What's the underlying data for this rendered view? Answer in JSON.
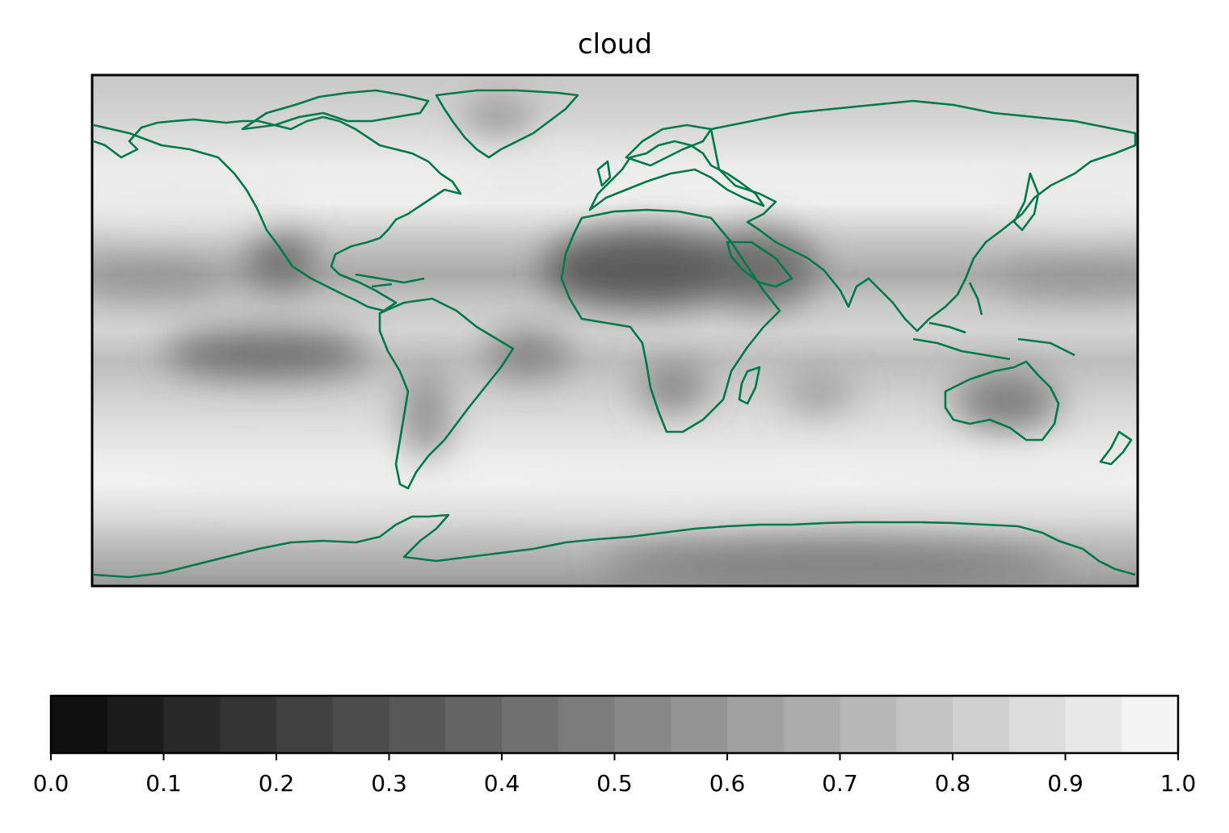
{
  "chart_data": {
    "type": "heatmap",
    "title": "cloud",
    "variable": "cloud",
    "projection": "PlateCarree",
    "lon_range": [
      -180,
      180
    ],
    "lat_range": [
      -90,
      90
    ],
    "colormap": "gray",
    "coastline_color": "#007a4a",
    "colorbar": {
      "orientation": "horizontal",
      "placement": "bottom",
      "range": [
        0.0,
        1.0
      ],
      "levels": [
        0.0,
        0.05,
        0.1,
        0.15,
        0.2,
        0.25,
        0.3,
        0.35,
        0.4,
        0.45,
        0.5,
        0.55,
        0.6,
        0.65,
        0.7,
        0.75,
        0.8,
        0.85,
        0.9,
        0.95,
        1.0
      ],
      "ticks": [
        0.0,
        0.1,
        0.2,
        0.3,
        0.4,
        0.5,
        0.6,
        0.7,
        0.8,
        0.9,
        1.0
      ],
      "tick_labels": [
        "0.0",
        "0.1",
        "0.2",
        "0.3",
        "0.4",
        "0.5",
        "0.6",
        "0.7",
        "0.8",
        "0.9",
        "1.0"
      ]
    },
    "field_blobs": [
      {
        "lon": 10,
        "lat": 22,
        "rx": 35,
        "ry": 14,
        "value": 0.28
      },
      {
        "lon": 50,
        "lat": 22,
        "rx": 20,
        "ry": 14,
        "value": 0.38
      },
      {
        "lon": -115,
        "lat": 25,
        "rx": 12,
        "ry": 10,
        "value": 0.38
      },
      {
        "lon": -120,
        "lat": -8,
        "rx": 35,
        "ry": 8,
        "value": 0.34
      },
      {
        "lon": -30,
        "lat": -8,
        "rx": 15,
        "ry": 8,
        "value": 0.45
      },
      {
        "lon": 20,
        "lat": -20,
        "rx": 12,
        "ry": 8,
        "value": 0.45
      },
      {
        "lon": 135,
        "lat": -25,
        "rx": 18,
        "ry": 10,
        "value": 0.42
      },
      {
        "lon": 70,
        "lat": -22,
        "rx": 12,
        "ry": 6,
        "value": 0.55
      },
      {
        "lon": -65,
        "lat": -30,
        "rx": 8,
        "ry": 16,
        "value": 0.5
      },
      {
        "lon": 75,
        "lat": -82,
        "rx": 80,
        "ry": 8,
        "value": 0.45
      },
      {
        "lon": 160,
        "lat": 18,
        "rx": 30,
        "ry": 6,
        "value": 0.55
      },
      {
        "lon": -160,
        "lat": 18,
        "rx": 25,
        "ry": 6,
        "value": 0.55
      },
      {
        "lon": -40,
        "lat": 75,
        "rx": 12,
        "ry": 6,
        "value": 0.5
      },
      {
        "lon": -150,
        "lat": 45,
        "rx": 40,
        "ry": 8,
        "value": 0.92
      },
      {
        "lon": 160,
        "lat": 45,
        "rx": 30,
        "ry": 8,
        "value": 0.92
      },
      {
        "lon": -30,
        "lat": 55,
        "rx": 25,
        "ry": 8,
        "value": 0.92
      },
      {
        "lon": -100,
        "lat": -55,
        "rx": 60,
        "ry": 5,
        "value": 0.93
      },
      {
        "lon": 20,
        "lat": -57,
        "rx": 60,
        "ry": 5,
        "value": 0.93
      },
      {
        "lon": 130,
        "lat": -55,
        "rx": 50,
        "ry": 5,
        "value": 0.92
      }
    ]
  }
}
